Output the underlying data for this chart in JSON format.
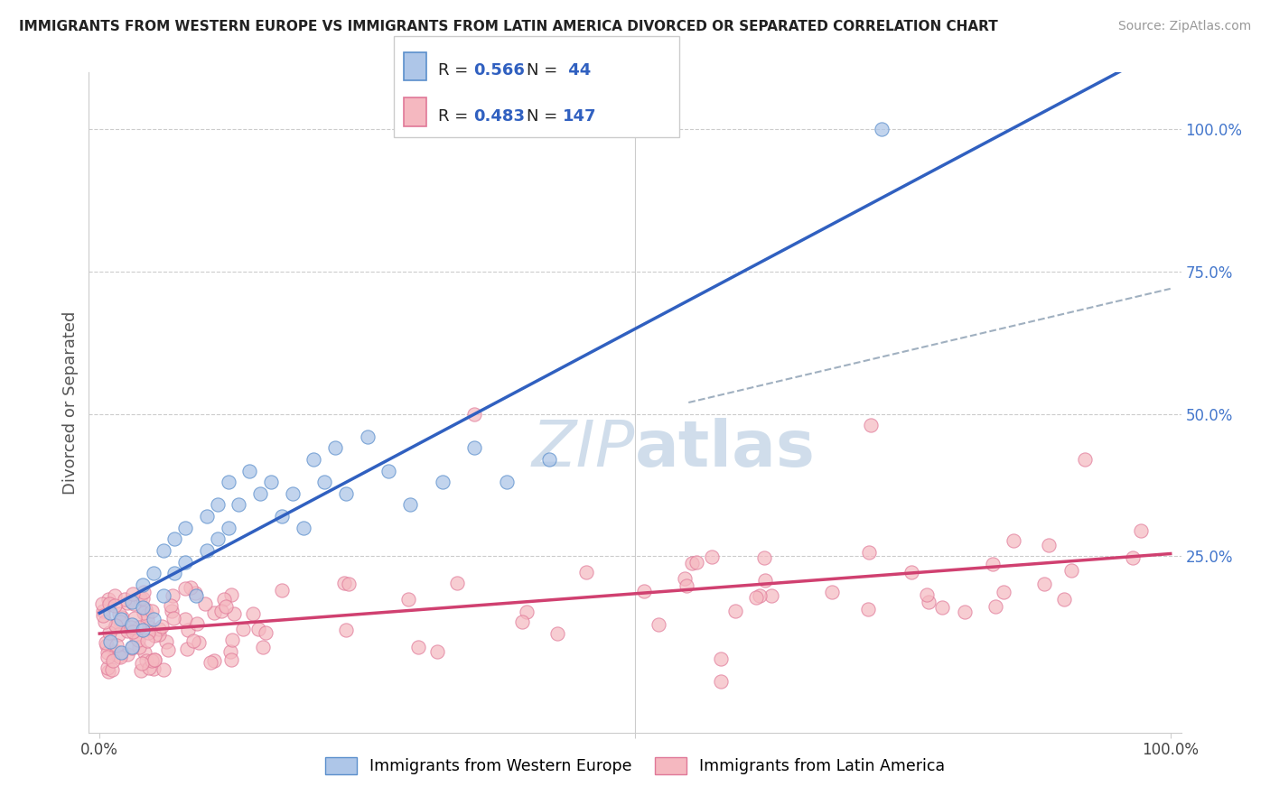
{
  "title": "IMMIGRANTS FROM WESTERN EUROPE VS IMMIGRANTS FROM LATIN AMERICA DIVORCED OR SEPARATED CORRELATION CHART",
  "source": "Source: ZipAtlas.com",
  "ylabel": "Divorced or Separated",
  "legend_label_blue": "Immigrants from Western Europe",
  "legend_label_pink": "Immigrants from Latin America",
  "blue_dot_face": "#aec6e8",
  "blue_dot_edge": "#5b8fcc",
  "pink_dot_face": "#f5b8c0",
  "pink_dot_edge": "#e07898",
  "line_blue": "#3060c0",
  "line_pink": "#d04070",
  "line_dashed": "#a0b0c0",
  "watermark_color": "#c8d8e8",
  "ytick_color": "#4477cc",
  "background": "#ffffff",
  "grid_color": "#cccccc",
  "title_color": "#222222",
  "source_color": "#999999",
  "ylabel_color": "#555555"
}
